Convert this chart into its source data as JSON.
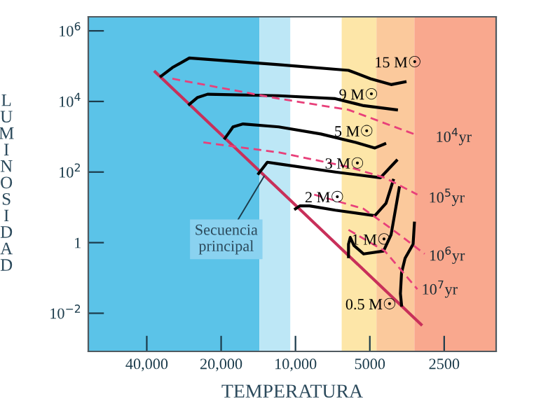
{
  "chart_data": {
    "type": "line",
    "xlabel": "TEMPERATURA",
    "ylabel": "LUMINOSIDAD",
    "log": "xy",
    "grid": false,
    "legend": false,
    "marker": "none",
    "xlim": [
      69000,
      1540
    ],
    "xticks": [
      {
        "value": 40000,
        "label": "40,000"
      },
      {
        "value": 20000,
        "label": "20,000"
      },
      {
        "value": 10000,
        "label": "10,000"
      },
      {
        "value": 5000,
        "label": "5000"
      },
      {
        "value": 2500,
        "label": "2500"
      }
    ],
    "ylim": [
      0.00083,
      2500000
    ],
    "yticks": [
      {
        "value": 1000000,
        "label": "10$^{6}$"
      },
      {
        "value": 10000,
        "label": "10$^{4}$"
      },
      {
        "value": 100,
        "label": "10$^{2}$"
      },
      1,
      {
        "value": 0.01,
        "label": "10$^{−2}$"
      }
    ],
    "bands": [
      {
        "axis": "x",
        "from": 69000,
        "to": 14000,
        "color": "#5bc3e8"
      },
      {
        "axis": "x",
        "from": 14000,
        "to": 10500,
        "color": "#bde7f6"
      },
      {
        "axis": "x",
        "from": 6500,
        "to": 4700,
        "color": "#fde6a8"
      },
      {
        "axis": "x",
        "from": 4700,
        "to": 3300,
        "color": "#fbc99c"
      },
      {
        "axis": "x",
        "from": 3300,
        "to": 1540,
        "color": "#f9a88e"
      }
    ],
    "series": [
      {
        "color": "#c8305a",
        "line_style": "solid",
        "x": [
          37000,
          3100
        ],
        "values": [
          69000,
          0.0048
        ]
      },
      {
        "name": "15 M☉",
        "color": "#000000",
        "line_style": "solid",
        "x": [
          3600,
          4100,
          4970,
          6100,
          11700,
          26900,
          31500,
          35000
        ],
        "values": [
          36000,
          30000,
          44000,
          76000,
          110000,
          170000,
          91000,
          52000
        ]
      },
      {
        "name": "9 M☉",
        "color": "#000000",
        "line_style": "solid",
        "x": [
          3900,
          5300,
          6900,
          11700,
          22700,
          24900,
          26900
        ],
        "values": [
          5800,
          7600,
          12000,
          14500,
          16000,
          13000,
          8300
        ]
      },
      {
        "name": "5 M☉",
        "color": "#000000",
        "line_style": "solid",
        "x": [
          4350,
          4770,
          5700,
          7900,
          11700,
          16300,
          17900,
          18600,
          19300
        ],
        "values": [
          630,
          480,
          690,
          1200,
          1900,
          2300,
          1900,
          1300,
          910
        ]
      },
      {
        "name": "3 M☉",
        "color": "#000000",
        "line_style": "solid",
        "x": [
          3900,
          4530,
          6900,
          11700,
          13000,
          13550,
          14100
        ],
        "values": [
          210,
          69,
          100,
          170,
          190,
          130,
          91
        ]
      },
      {
        "name": "2 M☉",
        "color": "#000000",
        "line_style": "solid",
        "x": [
          4020,
          4300,
          4770,
          6900,
          8770,
          9600,
          10000
        ],
        "values": [
          58,
          13,
          5.8,
          8.3,
          11,
          11,
          9.1
        ]
      },
      {
        "name": "1 M☉",
        "color": "#000000",
        "line_style": "solid",
        "x": [
          3800,
          4100,
          4400,
          5300,
          5800,
          6000,
          6100,
          6100
        ],
        "values": [
          36,
          1.7,
          0.58,
          0.48,
          0.83,
          1.4,
          0.91,
          0.4
        ]
      },
      {
        "name": "0.5 M☉",
        "color": "#000000",
        "line_style": "solid",
        "x": [
          3300,
          3340,
          3600,
          3720,
          3760,
          3720
        ],
        "values": [
          3.6,
          0.91,
          0.36,
          0.14,
          0.036,
          0.017
        ]
      },
      {
        "name": "10$^{4}$yr",
        "color": "#e8407a",
        "line_style": "dashed",
        "x": [
          31500,
          11700,
          6100,
          3210
        ],
        "values": [
          44000,
          12000,
          5800,
          1100
        ]
      },
      {
        "name": "10$^{5}$yr",
        "color": "#e8407a",
        "line_style": "dashed",
        "x": [
          23600,
          11700,
          6100,
          4350,
          3210
        ],
        "values": [
          690,
          360,
          140,
          69,
          23
        ]
      },
      {
        "name": "10$^{6}$yr",
        "color": "#e8407a",
        "line_style": "dashed",
        "x": [
          8400,
          5300,
          3800,
          3000
        ],
        "values": [
          23,
          9.1,
          1.7,
          0.48
        ]
      },
      {
        "name": "10$^{7}$yr",
        "color": "#e8407a",
        "line_style": "dashed",
        "x": [
          6100,
          4350,
          3210
        ],
        "values": [
          2.3,
          0.58,
          0.048
        ]
      }
    ],
    "annotations": [
      {
        "text": "Secuencia\nprincipal",
        "x": 13400,
        "y": 76
      }
    ]
  }
}
